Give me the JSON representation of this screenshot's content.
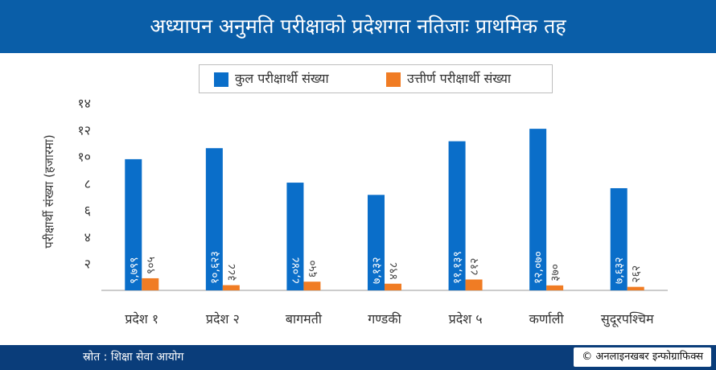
{
  "title": "अध्यापन अनुमति परीक्षाको प्रदेशगत नतिजाः प्राथमिक तह",
  "colors": {
    "header_bg": "#0a5ea8",
    "footer_bg": "#0a3d7a",
    "series_total": "#0a6ec9",
    "series_passed": "#f07c24"
  },
  "footer": {
    "source": "स्रोत : शिक्षा सेवा आयोग",
    "credit_symbol": "©",
    "credit": "अनलाइनखबर इन्फोग्राफिक्स"
  },
  "chart_data": {
    "type": "bar",
    "ylabel": "परीक्षार्थी संख्या (हजारमा)",
    "ylim": [
      0,
      14
    ],
    "yticks": [
      2,
      4,
      6,
      8,
      10,
      12,
      14
    ],
    "ytick_labels": [
      "२",
      "४",
      "६",
      "८",
      "१०",
      "१२",
      "१४"
    ],
    "categories": [
      "प्रदेश १",
      "प्रदेश २",
      "बागमती",
      "गण्डकी",
      "प्रदेश ५",
      "कर्णाली",
      "सुदूरपश्चिम"
    ],
    "series": [
      {
        "name": "कुल परीक्षार्थी संख्या",
        "values": [
          9799,
          10623,
          8048,
          7132,
          11139,
          12070,
          7632
        ],
        "labels": [
          "९,७९९",
          "१०,६२३",
          "८,०४८",
          "७,१३२",
          "११,१३९",
          "१२,०७०",
          "७,६३२"
        ]
      },
      {
        "name": "उत्तीर्ण परीक्षार्थी संख्या",
        "values": [
          905,
          388,
          650,
          498,
          812,
          370,
          262
        ],
        "labels": [
          "९०५",
          "३८८",
          "६५०",
          "४९८",
          "८१२",
          "३७०",
          "२६२"
        ]
      }
    ],
    "legend": "top-center",
    "grid": false
  }
}
